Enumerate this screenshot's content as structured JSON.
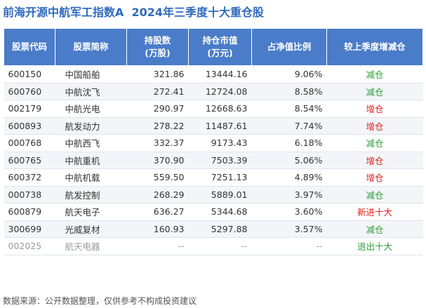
{
  "title": "前海开源中航军工指数A  2024年三季度十大重仓股",
  "table": {
    "headers": [
      "股票代码",
      "股票简称",
      "持股数\n(万股)",
      "持仓市值\n(万元)",
      "占净值比例",
      "较上季度增减仓"
    ],
    "rows": [
      {
        "cells": [
          "600150",
          "中国船舶",
          "321.86",
          "13444.16",
          "9.06%",
          "减仓"
        ],
        "text_color": "#333333",
        "change_color": "#2e9e3a"
      },
      {
        "cells": [
          "600760",
          "中航沈飞",
          "272.41",
          "12724.08",
          "8.58%",
          "减仓"
        ],
        "text_color": "#333333",
        "change_color": "#2e9e3a"
      },
      {
        "cells": [
          "002179",
          "中航光电",
          "290.97",
          "12668.63",
          "8.54%",
          "增仓"
        ],
        "text_color": "#333333",
        "change_color": "#e0201c"
      },
      {
        "cells": [
          "600893",
          "航发动力",
          "278.22",
          "11487.61",
          "7.74%",
          "增仓"
        ],
        "text_color": "#333333",
        "change_color": "#e0201c"
      },
      {
        "cells": [
          "000768",
          "中航西飞",
          "332.37",
          "9173.43",
          "6.18%",
          "减仓"
        ],
        "text_color": "#333333",
        "change_color": "#2e9e3a"
      },
      {
        "cells": [
          "600765",
          "中航重机",
          "370.90",
          "7503.39",
          "5.06%",
          "增仓"
        ],
        "text_color": "#333333",
        "change_color": "#e0201c"
      },
      {
        "cells": [
          "600372",
          "中航机载",
          "559.50",
          "7251.13",
          "4.89%",
          "增仓"
        ],
        "text_color": "#333333",
        "change_color": "#e0201c"
      },
      {
        "cells": [
          "000738",
          "航发控制",
          "268.29",
          "5889.01",
          "3.97%",
          "减仓"
        ],
        "text_color": "#333333",
        "change_color": "#2e9e3a"
      },
      {
        "cells": [
          "600879",
          "航天电子",
          "636.27",
          "5344.68",
          "3.60%",
          "新进十大"
        ],
        "text_color": "#333333",
        "change_color": "#e0201c"
      },
      {
        "cells": [
          "300699",
          "光威复材",
          "160.93",
          "5297.88",
          "3.57%",
          "减仓"
        ],
        "text_color": "#333333",
        "change_color": "#2e9e3a"
      },
      {
        "cells": [
          "002025",
          "航天电器",
          "--",
          "--",
          "--",
          "退出十大"
        ],
        "text_color": "#9a9a9a",
        "change_color": "#2e9e3a"
      }
    ]
  },
  "source": "数据来源：公开数据整理，仅供参考不构成投资建议"
}
